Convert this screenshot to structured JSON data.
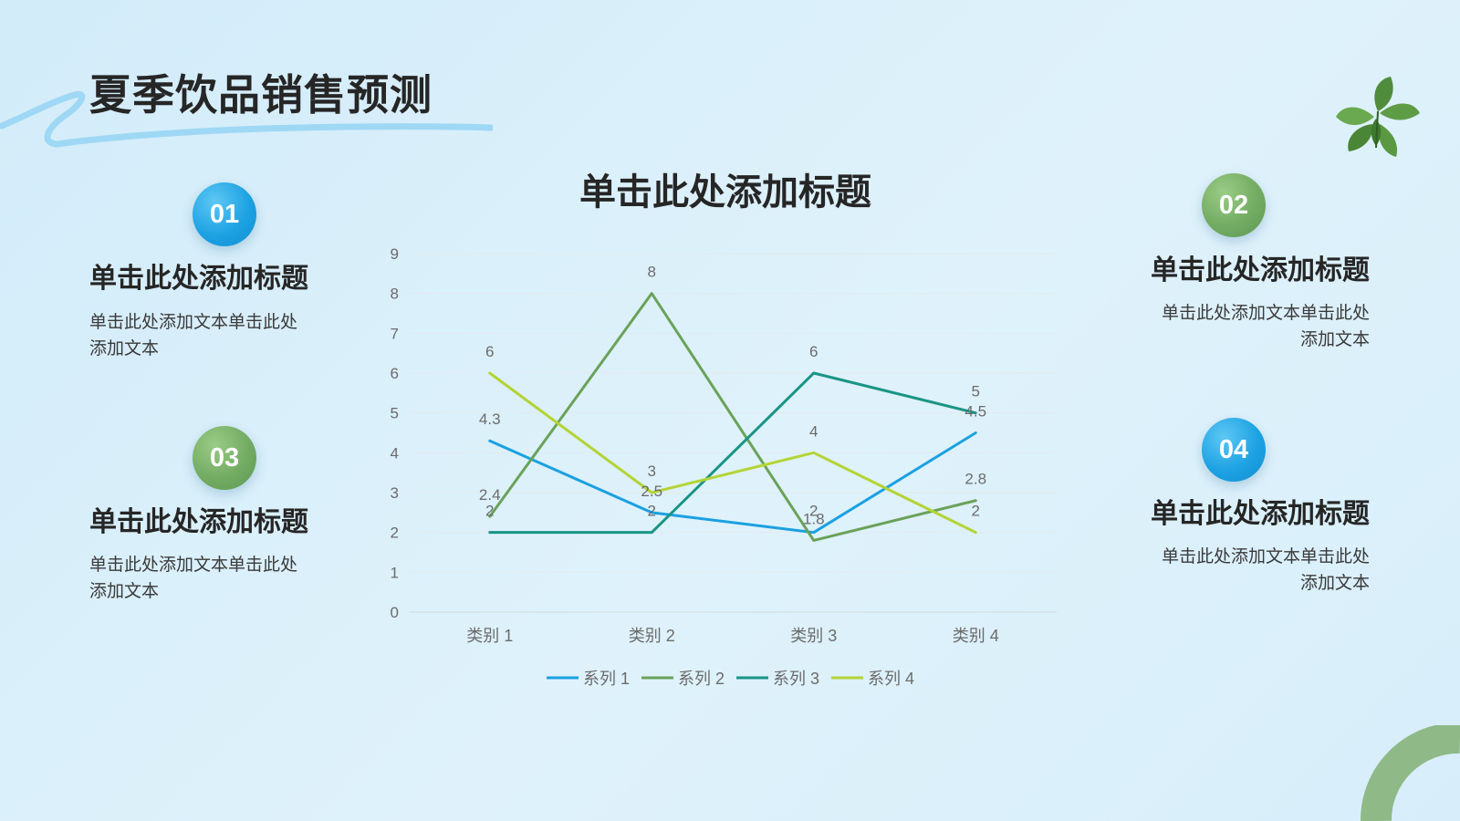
{
  "page_title": "夏季饮品销售预测",
  "blocks": [
    {
      "badge": "01",
      "title": "单击此处添加标题",
      "text": "单击此处添加文本单击此处添加文本"
    },
    {
      "badge": "02",
      "title": "单击此处添加标题",
      "text": "单击此处添加文本单击此处添加文本"
    },
    {
      "badge": "03",
      "title": "单击此处添加标题",
      "text": "单击此处添加文本单击此处添加文本"
    },
    {
      "badge": "04",
      "title": "单击此处添加标题",
      "text": "单击此处添加文本单击此处添加文本"
    }
  ],
  "colors": {
    "badge_blue": "#1ea2e3",
    "badge_green": "#73ab63",
    "decor_stroke": "#9fd8f4",
    "decor_arc": "#8fba87"
  },
  "icons": [
    "mint-leaves-icon",
    "brush-stroke-decoration",
    "arc-decoration"
  ],
  "chart_data": {
    "type": "line",
    "title": "单击此处添加标题",
    "categories": [
      "类别 1",
      "类别 2",
      "类别 3",
      "类别 4"
    ],
    "ylim": [
      0,
      9
    ],
    "yticks": [
      0,
      1,
      2,
      3,
      4,
      5,
      6,
      7,
      8,
      9
    ],
    "grid": true,
    "legend_position": "bottom",
    "series": [
      {
        "name": "系列 1",
        "color": "#1ba1e2",
        "values": [
          4.3,
          2.5,
          2,
          4.5
        ],
        "labels": [
          "4.3",
          "2.5",
          "2",
          "4.5"
        ]
      },
      {
        "name": "系列 2",
        "color": "#6aa25a",
        "values": [
          2.4,
          8,
          1.8,
          2.8
        ],
        "labels": [
          "2.4",
          "8",
          "1.8",
          "2.8"
        ]
      },
      {
        "name": "系列 3",
        "color": "#1a9484",
        "values": [
          2,
          2,
          6,
          5
        ],
        "labels": [
          "2",
          "2",
          "6",
          "5"
        ]
      },
      {
        "name": "系列 4",
        "color": "#b4d334",
        "values": [
          6,
          3,
          4,
          2
        ],
        "labels": [
          "6",
          "3",
          "4",
          "2"
        ]
      }
    ]
  }
}
